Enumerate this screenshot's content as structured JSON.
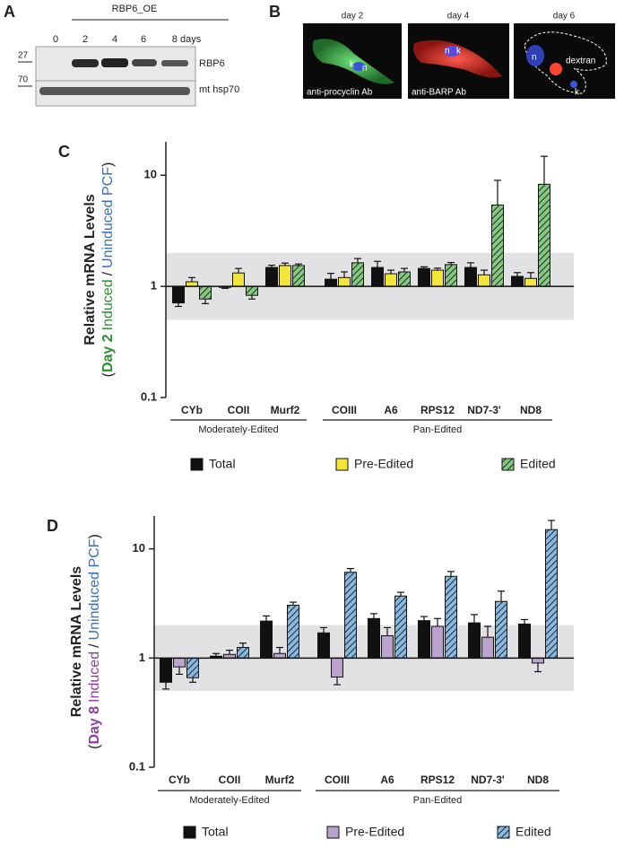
{
  "panel_a": {
    "label": "A",
    "construct": "RBP6_OE",
    "lanes": [
      "0",
      "2",
      "4",
      "6",
      "8 days"
    ],
    "markers": [
      "27",
      "70"
    ],
    "rows": [
      "RBP6",
      "mt hsp70"
    ]
  },
  "panel_b": {
    "label": "B",
    "images": [
      {
        "title": "day 2",
        "caption": "anti-procyclin Ab",
        "labels": [
          "k",
          "n"
        ]
      },
      {
        "title": "day 4",
        "caption": "anti-BARP Ab",
        "labels": [
          "n",
          "k"
        ]
      },
      {
        "title": "day 6",
        "labels": [
          "n",
          "dextran",
          "k"
        ]
      }
    ]
  },
  "chart_data": [
    {
      "panel": "C",
      "type": "bar",
      "y_label": "Relative mRNA Levels",
      "y_label_parts": [
        "(",
        "Day 2",
        "Induced",
        "/",
        "Uninduced PCF",
        ")"
      ],
      "y_label_colors": [
        "#222222",
        "#2f8f2f",
        "#2f8f2f",
        "#222222",
        "#3a6fb5",
        "#222222"
      ],
      "categories": [
        "CYb",
        "COII",
        "Murf2",
        "COIII",
        "A6",
        "RPS12",
        "ND7-3'",
        "ND8"
      ],
      "groups": [
        {
          "label": "Moderately-Edited",
          "categories": [
            "CYb",
            "COII",
            "Murf2"
          ]
        },
        {
          "label": "Pan-Edited",
          "categories": [
            "COIII",
            "A6",
            "RPS12",
            "ND7-3'",
            "ND8"
          ]
        }
      ],
      "series": [
        {
          "name": "Total",
          "color": "#111111",
          "values": [
            0.71,
            0.98,
            1.48,
            1.16,
            1.48,
            1.45,
            1.48,
            1.23
          ],
          "errors": [
            0.05,
            0.02,
            0.07,
            0.15,
            0.2,
            0.05,
            0.15,
            0.1
          ]
        },
        {
          "name": "Pre-Edited",
          "color": "#f2e53a",
          "values": [
            1.1,
            1.32,
            1.54,
            1.2,
            1.3,
            1.4,
            1.27,
            1.18
          ],
          "errors": [
            0.1,
            0.13,
            0.08,
            0.15,
            0.1,
            0.06,
            0.13,
            0.15
          ]
        },
        {
          "name": "Edited",
          "color": "#86c97a",
          "hatch": true,
          "values": [
            0.77,
            0.83,
            1.54,
            1.63,
            1.35,
            1.57,
            5.4,
            8.3
          ],
          "errors": [
            0.07,
            0.06,
            0.05,
            0.15,
            0.1,
            0.07,
            3.6,
            6.5
          ]
        }
      ],
      "log_y": true,
      "ylim": [
        0.1,
        20
      ],
      "yticks": [
        0.1,
        1,
        10
      ],
      "baseline": 1,
      "shaded_band": [
        0.5,
        2
      ]
    },
    {
      "panel": "D",
      "type": "bar",
      "y_label": "Relative mRNA Levels",
      "y_label_parts": [
        "(",
        "Day 8",
        "Induced",
        "/",
        "Uninduced PCF",
        ")"
      ],
      "y_label_colors": [
        "#222222",
        "#8e3f9e",
        "#8e3f9e",
        "#222222",
        "#3a6fb5",
        "#222222"
      ],
      "categories": [
        "CYb",
        "COII",
        "Murf2",
        "COIII",
        "A6",
        "RPS12",
        "ND7-3'",
        "ND8"
      ],
      "groups": [
        {
          "label": "Moderately-Edited",
          "categories": [
            "CYb",
            "COII",
            "Murf2"
          ]
        },
        {
          "label": "Pan-Edited",
          "categories": [
            "COIII",
            "A6",
            "RPS12",
            "ND7-3'",
            "ND8"
          ]
        }
      ],
      "series": [
        {
          "name": "Total",
          "color": "#111111",
          "values": [
            0.6,
            1.04,
            2.18,
            1.7,
            2.3,
            2.2,
            2.1,
            2.05
          ],
          "errors": [
            0.08,
            0.06,
            0.25,
            0.2,
            0.25,
            0.2,
            0.4,
            0.2
          ]
        },
        {
          "name": "Pre-Edited",
          "color": "#b9a3cc",
          "values": [
            0.83,
            1.08,
            1.1,
            0.67,
            1.6,
            1.95,
            1.55,
            0.9
          ],
          "errors": [
            0.12,
            0.1,
            0.15,
            0.1,
            0.3,
            0.35,
            0.4,
            0.15
          ]
        },
        {
          "name": "Edited",
          "color": "#8ab8dd",
          "hatch": true,
          "values": [
            0.66,
            1.25,
            3.05,
            6.1,
            3.7,
            5.6,
            3.3,
            15
          ],
          "errors": [
            0.06,
            0.12,
            0.2,
            0.5,
            0.3,
            0.6,
            0.8,
            3.2
          ]
        }
      ],
      "log_y": true,
      "ylim": [
        0.1,
        20
      ],
      "yticks": [
        0.1,
        1,
        10
      ],
      "baseline": 1,
      "shaded_band": [
        0.5,
        2
      ]
    }
  ]
}
